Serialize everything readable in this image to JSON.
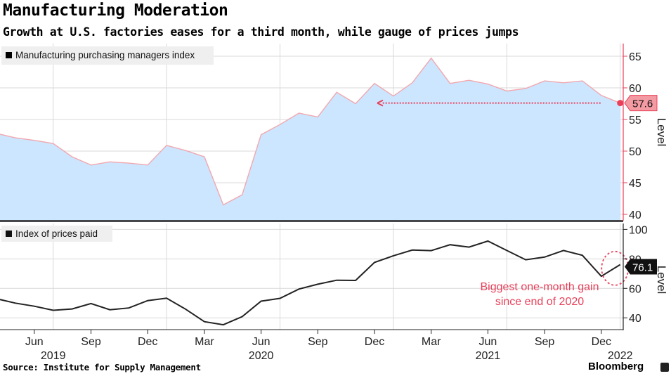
{
  "title": "Manufacturing Moderation",
  "subtitle": "Growth at U.S. factories eases for a third month, while gauge of prices jumps",
  "source": "Source: Institute for Supply Management",
  "brand": "Bloomberg",
  "colors": {
    "pmi_line": "#f2a7ae",
    "pmi_fill": "#cce6ff",
    "pmi_accent": "#e8405a",
    "prices_line": "#222222",
    "annotation": "#e8405a",
    "grid": "#d9d9d9"
  },
  "chart_data": [
    {
      "type": "area",
      "legend": "Manufacturing purchasing managers index",
      "legend_position": "top-left",
      "ylabel": "Level",
      "ylim": [
        39,
        67
      ],
      "yticks": [
        40,
        45,
        50,
        55,
        60,
        65
      ],
      "grid": true,
      "x": [
        "2019-04",
        "2019-05",
        "2019-06",
        "2019-07",
        "2019-08",
        "2019-09",
        "2019-10",
        "2019-11",
        "2019-12",
        "2020-01",
        "2020-02",
        "2020-03",
        "2020-04",
        "2020-05",
        "2020-06",
        "2020-07",
        "2020-08",
        "2020-09",
        "2020-10",
        "2020-11",
        "2020-12",
        "2021-01",
        "2021-02",
        "2021-03",
        "2021-04",
        "2021-05",
        "2021-06",
        "2021-07",
        "2021-08",
        "2021-09",
        "2021-10",
        "2021-11",
        "2021-12",
        "2022-01"
      ],
      "values": [
        52.8,
        52.1,
        51.7,
        51.2,
        49.1,
        47.8,
        48.3,
        48.1,
        47.8,
        50.9,
        50.1,
        49.1,
        41.5,
        43.1,
        52.6,
        54.2,
        56.0,
        55.4,
        59.3,
        57.5,
        60.7,
        58.7,
        60.8,
        64.7,
        60.7,
        61.2,
        60.6,
        59.5,
        59.9,
        61.1,
        60.8,
        61.1,
        58.8,
        57.6
      ],
      "latest_label": "57.6",
      "reference_arrow": {
        "from": "2022-01",
        "to": "2020-12",
        "level": 57.6
      }
    },
    {
      "type": "line",
      "legend": "Index of prices paid",
      "legend_position": "top-left",
      "ylabel": "Level",
      "ylim": [
        32,
        104
      ],
      "yticks": [
        40,
        60,
        80,
        100
      ],
      "grid": true,
      "x": [
        "2019-04",
        "2019-05",
        "2019-06",
        "2019-07",
        "2019-08",
        "2019-09",
        "2019-10",
        "2019-11",
        "2019-12",
        "2020-01",
        "2020-02",
        "2020-03",
        "2020-04",
        "2020-05",
        "2020-06",
        "2020-07",
        "2020-08",
        "2020-09",
        "2020-10",
        "2020-11",
        "2020-12",
        "2021-01",
        "2021-02",
        "2021-03",
        "2021-04",
        "2021-05",
        "2021-06",
        "2021-07",
        "2021-08",
        "2021-09",
        "2021-10",
        "2021-11",
        "2021-12",
        "2022-01"
      ],
      "values": [
        53.0,
        50.0,
        47.9,
        45.1,
        46.0,
        49.7,
        45.5,
        46.7,
        51.7,
        53.3,
        45.9,
        37.4,
        35.3,
        40.8,
        51.3,
        53.2,
        59.5,
        62.8,
        65.5,
        65.4,
        77.6,
        82.1,
        86.0,
        85.6,
        89.6,
        88.0,
        92.1,
        85.7,
        79.4,
        81.2,
        85.7,
        82.4,
        68.2,
        76.1
      ],
      "latest_label": "76.1",
      "annotation": "Biggest one-month gain since end of 2020"
    }
  ],
  "x_axis": {
    "tick_labels": [
      {
        "label": "Jun",
        "date": "2019-06"
      },
      {
        "label": "Sep",
        "date": "2019-09"
      },
      {
        "label": "Dec",
        "date": "2019-12"
      },
      {
        "label": "Mar",
        "date": "2020-03"
      },
      {
        "label": "Jun",
        "date": "2020-06"
      },
      {
        "label": "Sep",
        "date": "2020-09"
      },
      {
        "label": "Dec",
        "date": "2020-12"
      },
      {
        "label": "Mar",
        "date": "2021-03"
      },
      {
        "label": "Jun",
        "date": "2021-06"
      },
      {
        "label": "Sep",
        "date": "2021-09"
      },
      {
        "label": "Dec",
        "date": "2021-12"
      }
    ],
    "year_labels": [
      {
        "label": "2019",
        "date": "2019-07"
      },
      {
        "label": "2020",
        "date": "2020-06"
      },
      {
        "label": "2021",
        "date": "2021-06"
      },
      {
        "label": "2022",
        "date": "2022-01"
      }
    ]
  }
}
